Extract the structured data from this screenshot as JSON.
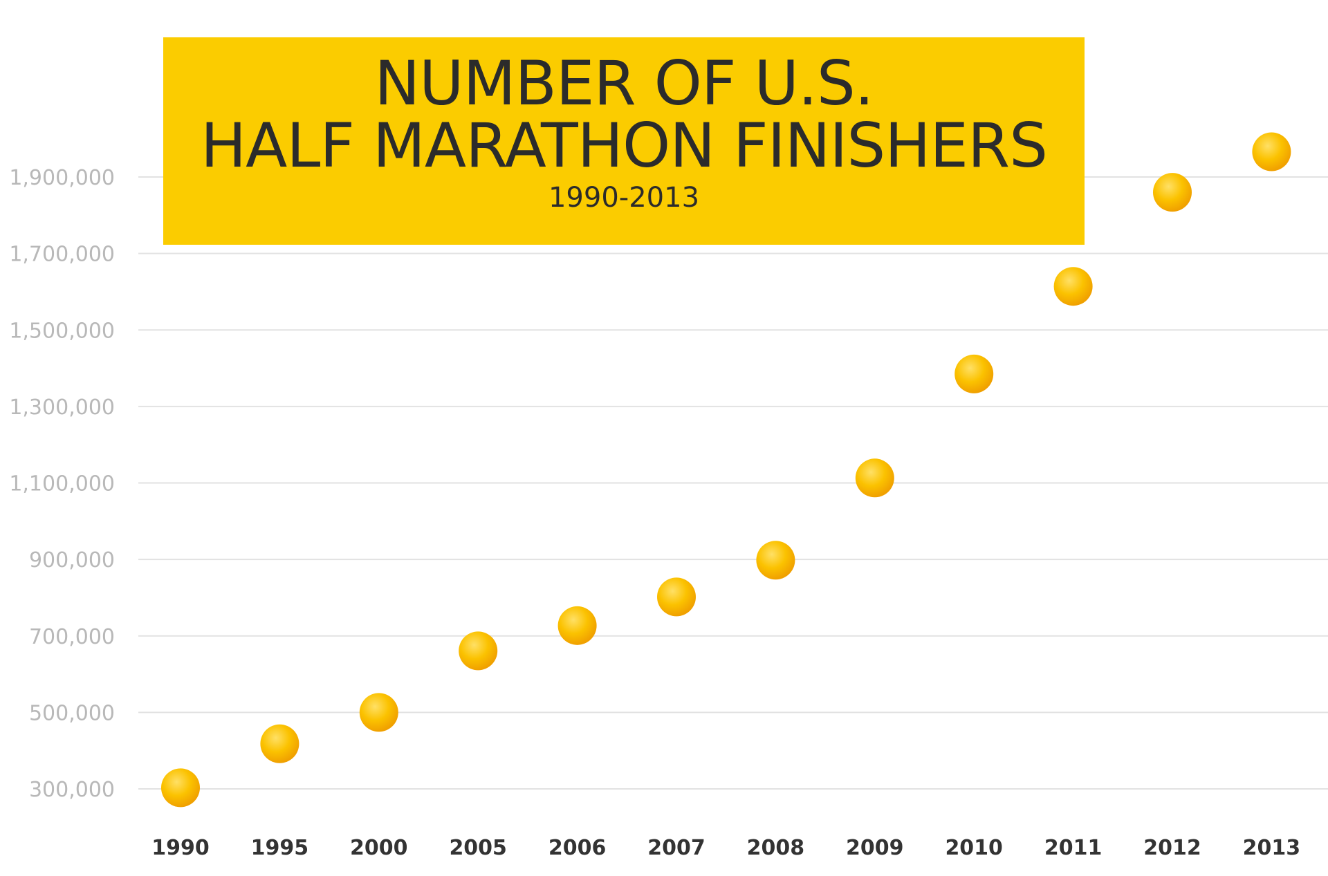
{
  "chart_data": {
    "type": "scatter",
    "title_line1": "NUMBER OF U.S.",
    "title_line2": "HALF MARATHON FINISHERS",
    "subtitle": "1990-2013",
    "xlabel": "",
    "ylabel": "",
    "categories": [
      "1990",
      "1995",
      "2000",
      "2005",
      "2006",
      "2007",
      "2008",
      "2009",
      "2010",
      "2011",
      "2012",
      "2013"
    ],
    "values": [
      303000,
      418000,
      500000,
      661000,
      727000,
      802000,
      898000,
      1113000,
      1385000,
      1614000,
      1860000,
      1966000
    ],
    "yticks": [
      300000,
      500000,
      700000,
      900000,
      1100000,
      1300000,
      1500000,
      1700000,
      1900000
    ],
    "ytick_labels": [
      "300,000",
      "500,000",
      "700,000",
      "900,000",
      "1,100,000",
      "1,300,000",
      "1,500,000",
      "1,700,000",
      "1,900,000"
    ],
    "ylim": [
      300000,
      1900000
    ],
    "grid": true,
    "legend": "none",
    "colors": {
      "marker": "#fbc200",
      "marker_shade": "#f0a400",
      "title_box": "#fbcc00",
      "grid": "#e2e2e2",
      "text_dark": "#2b2b2b",
      "text_grey": "#b8b8b8"
    }
  }
}
